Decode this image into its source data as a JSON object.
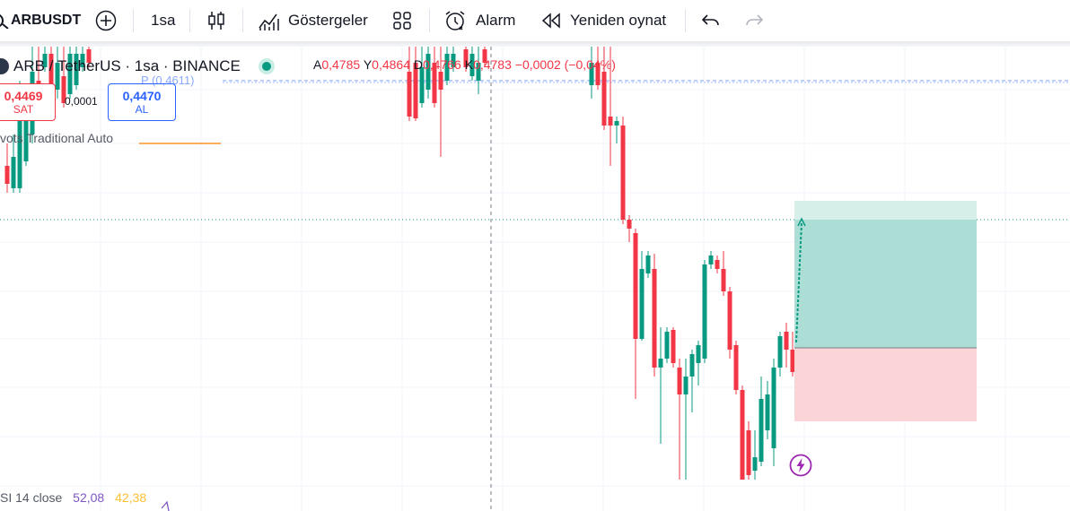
{
  "toolbar": {
    "symbol": "ARBUSDT",
    "interval": "1sa",
    "indicators_label": "Göstergeler",
    "alarm_label": "Alarm",
    "replay_label": "Yeniden oynat"
  },
  "legend": {
    "title": "ARB / TetherUS · 1sa · BINANCE",
    "o_label": "A",
    "o_value": "0,4785",
    "h_label": "Y",
    "h_value": "0,4864",
    "l_label": "D",
    "l_value": "0,4766",
    "c_label": "K",
    "c_value": "0,4783",
    "change": "−0,0002 (−0,04%)"
  },
  "trade": {
    "sell_price": "0,4469",
    "sell_label": "SAT",
    "spread": "0,0001",
    "buy_price": "0,4470",
    "buy_label": "AL"
  },
  "indicators": {
    "pivot_label": "vots Traditional Auto",
    "pivot_level": "P (0,4611)",
    "rsi_label": "SI 14 close",
    "rsi_value1": "52,08",
    "rsi_value2": "42,38"
  },
  "colors": {
    "up": "#089981",
    "down": "#f23645",
    "profit_zone": "#a9dcd3",
    "loss_zone": "#fad4d7",
    "pivot": "#f57c00",
    "rsi1": "#7e57c2",
    "rsi2": "#fbc02d"
  },
  "icons": [
    "search-icon",
    "plus-circle-icon",
    "candles-icon",
    "indicators-icon",
    "layout-icon",
    "alarm-clock-icon",
    "replay-icon",
    "undo-icon",
    "redo-icon",
    "lightning-icon"
  ]
}
